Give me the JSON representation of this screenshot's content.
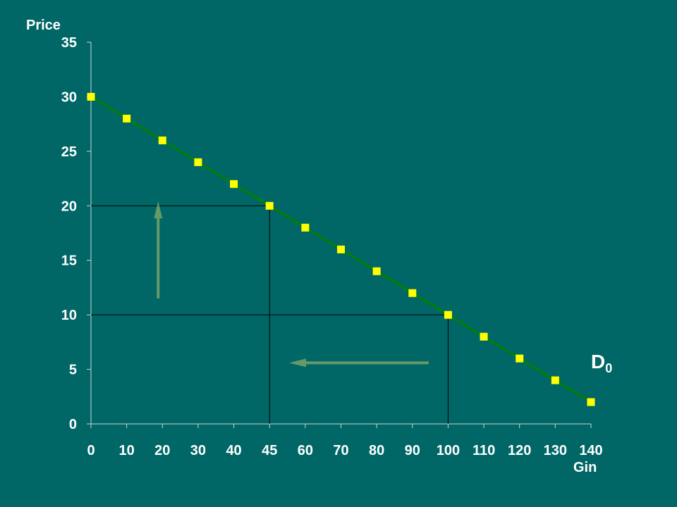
{
  "chart_data": {
    "type": "line",
    "ylabel": "Price",
    "xlabel": "Gin",
    "x_tick_labels": [
      "0",
      "10",
      "20",
      "30",
      "40",
      "45",
      "60",
      "70",
      "80",
      "90",
      "100",
      "110",
      "120",
      "130",
      "140"
    ],
    "y_ticks": [
      0,
      5,
      10,
      15,
      20,
      25,
      30,
      35
    ],
    "ylim": [
      0,
      35
    ],
    "grid": false,
    "series": [
      {
        "name": "D0",
        "x": [
          "0",
          "10",
          "20",
          "30",
          "40",
          "45",
          "60",
          "70",
          "80",
          "90",
          "100",
          "110",
          "120",
          "130",
          "140"
        ],
        "y": [
          30,
          28,
          26,
          24,
          22,
          20,
          18,
          16,
          14,
          12,
          10,
          8,
          6,
          4,
          2
        ]
      }
    ],
    "curve_label": {
      "main": "D",
      "subscript": "0"
    },
    "reference_points": [
      {
        "x": "45",
        "y": 20
      },
      {
        "x": "100",
        "y": 10
      }
    ],
    "arrows": [
      {
        "direction": "up"
      },
      {
        "direction": "left"
      }
    ],
    "colors": {
      "background": "#006666",
      "line": "#008000",
      "marker": "#ffff00",
      "arrow": "#669966",
      "text": "#ffffff"
    }
  }
}
